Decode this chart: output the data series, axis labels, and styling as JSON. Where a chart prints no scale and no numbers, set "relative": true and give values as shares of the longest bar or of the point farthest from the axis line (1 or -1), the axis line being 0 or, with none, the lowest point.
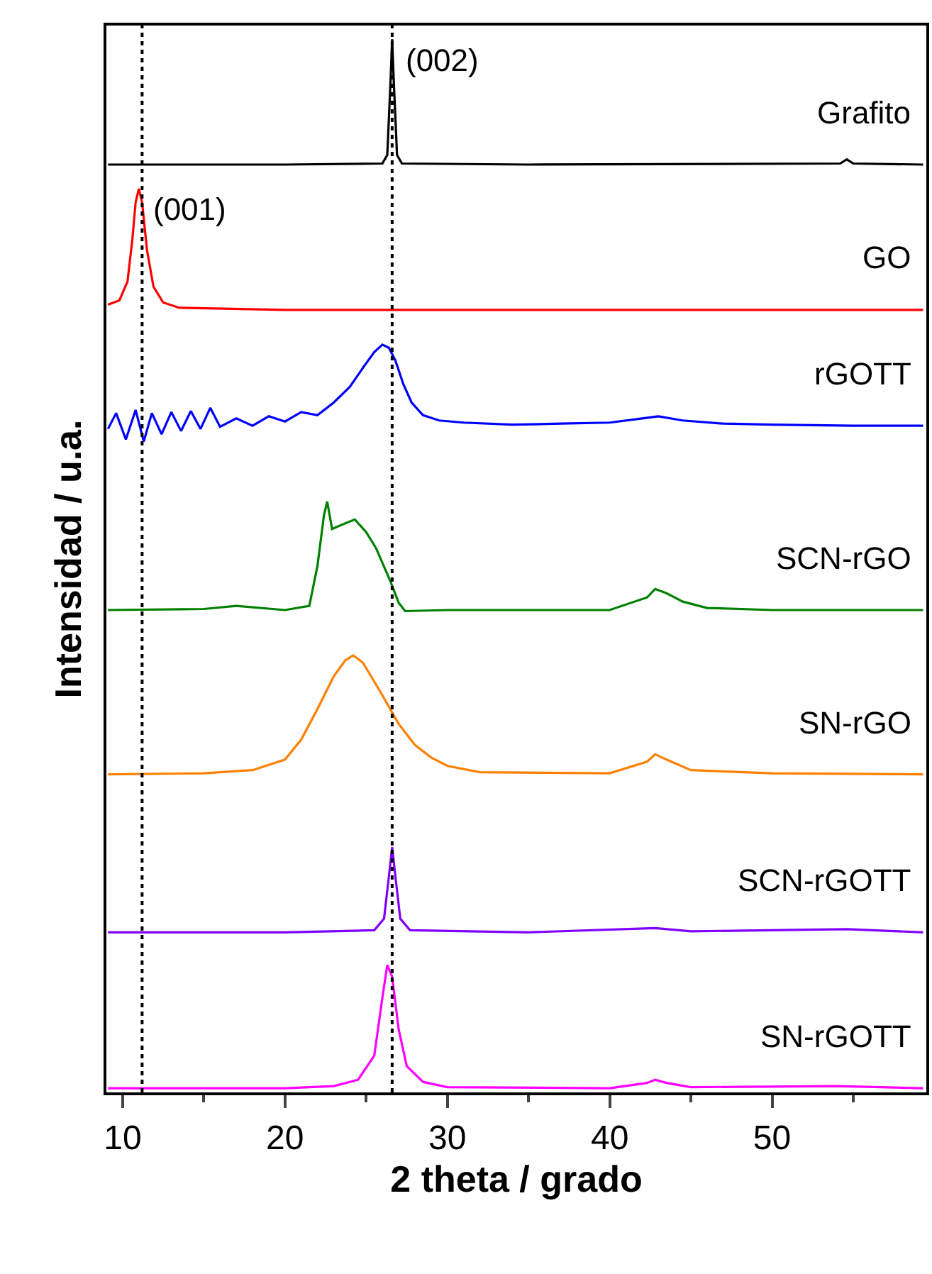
{
  "chart_data": {
    "type": "line",
    "relative": true,
    "xlabel": "2 theta / grado",
    "ylabel": "Intensidad / u.a.",
    "xlim": [
      9,
      59.5
    ],
    "xticks": [
      10,
      20,
      30,
      40,
      50
    ],
    "legend": false,
    "tick_labels": "x",
    "line_style": "solid",
    "marker": "none",
    "series": [
      {
        "name": "Grafito",
        "color": "#000000",
        "x": [
          9.1,
          20,
          26.0,
          26.3,
          26.5,
          26.6,
          26.7,
          26.9,
          27.2,
          35,
          54.2,
          54.6,
          55.0,
          59.3
        ],
        "values": [
          0.881,
          0.881,
          0.882,
          0.89,
          0.96,
          1.0,
          0.96,
          0.89,
          0.882,
          0.881,
          0.882,
          0.886,
          0.882,
          0.881
        ]
      },
      {
        "name": "GO",
        "color": "#ff0000",
        "x": [
          9.1,
          9.8,
          10.3,
          10.6,
          10.8,
          11.0,
          11.2,
          11.5,
          11.9,
          12.5,
          13.5,
          20,
          40,
          59.3
        ],
        "values": [
          0.748,
          0.752,
          0.77,
          0.81,
          0.845,
          0.858,
          0.845,
          0.8,
          0.765,
          0.75,
          0.745,
          0.743,
          0.743,
          0.743
        ]
      },
      {
        "name": "rGOTT",
        "color": "#0000ff",
        "x": [
          9.1,
          9.6,
          10.2,
          10.8,
          11.3,
          11.8,
          12.4,
          13.0,
          13.6,
          14.2,
          14.8,
          15.4,
          16.0,
          17.0,
          18.0,
          19.0,
          20.0,
          21.0,
          22.0,
          23.0,
          24.0,
          24.8,
          25.5,
          26.0,
          26.4,
          26.8,
          27.3,
          27.8,
          28.5,
          29.5,
          31,
          34,
          37,
          40,
          42,
          43,
          44.5,
          47,
          50,
          55,
          59.3
        ],
        "values": [
          0.63,
          0.645,
          0.62,
          0.648,
          0.618,
          0.645,
          0.625,
          0.646,
          0.628,
          0.647,
          0.63,
          0.65,
          0.632,
          0.64,
          0.633,
          0.642,
          0.637,
          0.646,
          0.643,
          0.655,
          0.67,
          0.688,
          0.703,
          0.71,
          0.707,
          0.695,
          0.672,
          0.655,
          0.643,
          0.638,
          0.636,
          0.634,
          0.635,
          0.636,
          0.64,
          0.642,
          0.638,
          0.635,
          0.634,
          0.633,
          0.633
        ]
      },
      {
        "name": "SCN-rGO",
        "color": "#008000",
        "x": [
          9.1,
          15,
          17,
          20,
          21.5,
          22.0,
          22.4,
          22.6,
          22.9,
          23.5,
          24.3,
          25.0,
          25.6,
          26.5,
          27.0,
          27.4,
          30,
          40,
          42.3,
          42.8,
          43.5,
          44.5,
          46,
          50,
          59.3
        ],
        "values": [
          0.458,
          0.459,
          0.462,
          0.458,
          0.462,
          0.5,
          0.548,
          0.561,
          0.535,
          0.539,
          0.544,
          0.532,
          0.517,
          0.485,
          0.465,
          0.457,
          0.458,
          0.458,
          0.47,
          0.478,
          0.474,
          0.466,
          0.46,
          0.458,
          0.458
        ]
      },
      {
        "name": "SN-rGO",
        "color": "#ff8000",
        "x": [
          9.1,
          15,
          18,
          20,
          21,
          22,
          23,
          23.7,
          24.2,
          24.8,
          25.5,
          26,
          27,
          28,
          29,
          30,
          32,
          40,
          42.3,
          42.8,
          43.5,
          45,
          50,
          59.3
        ],
        "values": [
          0.302,
          0.303,
          0.306,
          0.316,
          0.335,
          0.364,
          0.395,
          0.41,
          0.415,
          0.408,
          0.39,
          0.377,
          0.35,
          0.33,
          0.318,
          0.31,
          0.304,
          0.303,
          0.314,
          0.321,
          0.316,
          0.306,
          0.303,
          0.302
        ]
      },
      {
        "name": "SCN-rGOTT",
        "color": "#8000ff",
        "x": [
          9.1,
          20,
          25.5,
          26.1,
          26.4,
          26.6,
          26.8,
          27.1,
          27.7,
          35,
          42.8,
          45,
          54.6,
          59.3
        ],
        "values": [
          0.152,
          0.152,
          0.154,
          0.165,
          0.205,
          0.233,
          0.205,
          0.165,
          0.154,
          0.152,
          0.156,
          0.153,
          0.155,
          0.152
        ]
      },
      {
        "name": "SN-rGOTT",
        "color": "#ff00ff",
        "x": [
          9.1,
          20,
          23,
          24.5,
          25.5,
          26.0,
          26.3,
          26.6,
          27.0,
          27.5,
          28.5,
          30,
          40,
          42.3,
          42.8,
          43.5,
          45,
          54,
          59.3
        ],
        "values": [
          0.004,
          0.004,
          0.006,
          0.012,
          0.035,
          0.09,
          0.121,
          0.11,
          0.06,
          0.025,
          0.01,
          0.005,
          0.004,
          0.009,
          0.012,
          0.009,
          0.005,
          0.006,
          0.004
        ]
      }
    ],
    "ref_lines": [
      {
        "axis": "x",
        "value": 11.2,
        "color": "#000000",
        "line_style": "dotted"
      },
      {
        "axis": "x",
        "value": 26.6,
        "color": "#000000",
        "line_style": "dotted"
      }
    ],
    "annotations": [
      {
        "text": "(001)",
        "x": 11.0,
        "y": 0.858
      },
      {
        "text": "(002)",
        "x": 26.6,
        "y": 1.0
      }
    ]
  }
}
